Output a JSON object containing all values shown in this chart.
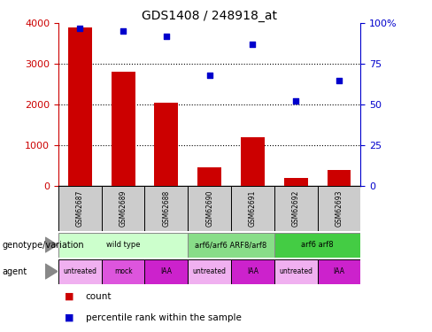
{
  "title": "GDS1408 / 248918_at",
  "samples": [
    "GSM62687",
    "GSM62689",
    "GSM62688",
    "GSM62690",
    "GSM62691",
    "GSM62692",
    "GSM62693"
  ],
  "counts": [
    3900,
    2800,
    2050,
    450,
    1200,
    200,
    400
  ],
  "percentile_ranks": [
    97,
    95,
    92,
    68,
    87,
    52,
    65
  ],
  "bar_color": "#cc0000",
  "dot_color": "#0000cc",
  "left_ylim": [
    0,
    4000
  ],
  "right_ylim": [
    0,
    100
  ],
  "left_yticks": [
    0,
    1000,
    2000,
    3000,
    4000
  ],
  "right_yticks": [
    0,
    25,
    50,
    75,
    100
  ],
  "right_yticklabels": [
    "0",
    "25",
    "50",
    "75",
    "100%"
  ],
  "grid_lines": [
    1000,
    2000,
    3000
  ],
  "genotype_groups": [
    {
      "label": "wild type",
      "start": 0,
      "end": 3,
      "color": "#ccffcc",
      "border": "#888888"
    },
    {
      "label": "arf6/arf6 ARF8/arf8",
      "start": 3,
      "end": 5,
      "color": "#88dd88",
      "border": "#888888"
    },
    {
      "label": "arf6 arf8",
      "start": 5,
      "end": 7,
      "color": "#44cc44",
      "border": "#888888"
    }
  ],
  "agent_labels": [
    "untreated",
    "mock",
    "IAA",
    "untreated",
    "IAA",
    "untreated",
    "IAA"
  ],
  "agent_colors": [
    "#f0b0f0",
    "#dd55dd",
    "#cc22cc",
    "#f0b0f0",
    "#cc22cc",
    "#f0b0f0",
    "#cc22cc"
  ],
  "sample_box_color": "#cccccc",
  "legend_count_color": "#cc0000",
  "legend_pct_color": "#0000cc",
  "fig_width": 4.88,
  "fig_height": 3.75,
  "fig_dpi": 100
}
